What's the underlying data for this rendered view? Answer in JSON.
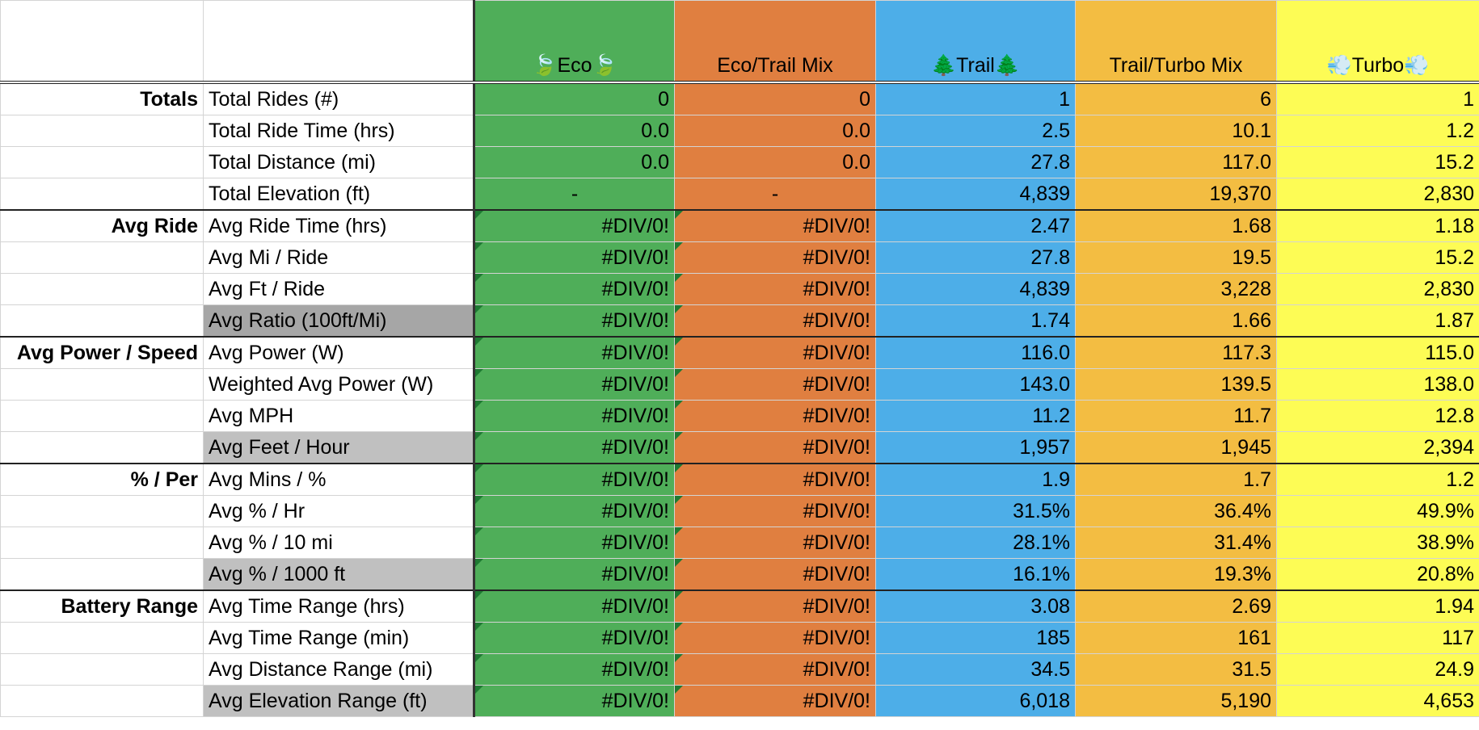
{
  "header": {
    "columns": [
      "🍃Eco🍃",
      "Eco/Trail Mix",
      "🌲Trail🌲",
      "Trail/Turbo Mix",
      "💨Turbo💨"
    ]
  },
  "groups": [
    {
      "label": "Totals",
      "rows": [
        {
          "name": "Total Rides (#)",
          "values": [
            "0",
            "0",
            "1",
            "6",
            "1"
          ]
        },
        {
          "name": "Total Ride Time (hrs)",
          "values": [
            "0.0",
            "0.0",
            "2.5",
            "10.1",
            "1.2"
          ]
        },
        {
          "name": "Total Distance (mi)",
          "values": [
            "0.0",
            "0.0",
            "27.8",
            "117.0",
            "15.2"
          ]
        },
        {
          "name": "Total Elevation (ft)",
          "values": [
            "-",
            "-",
            "4,839",
            "19,370",
            "2,830"
          ]
        }
      ]
    },
    {
      "label": "Avg Ride",
      "rows": [
        {
          "name": "Avg Ride Time (hrs)",
          "values": [
            "#DIV/0!",
            "#DIV/0!",
            "2.47",
            "1.68",
            "1.18"
          ]
        },
        {
          "name": "Avg Mi / Ride",
          "values": [
            "#DIV/0!",
            "#DIV/0!",
            "27.8",
            "19.5",
            "15.2"
          ]
        },
        {
          "name": "Avg Ft / Ride",
          "values": [
            "#DIV/0!",
            "#DIV/0!",
            "4,839",
            "3,228",
            "2,830"
          ]
        },
        {
          "name": "Avg Ratio (100ft/Mi)",
          "values": [
            "#DIV/0!",
            "#DIV/0!",
            "1.74",
            "1.66",
            "1.87"
          ]
        }
      ]
    },
    {
      "label": "Avg Power / Speed",
      "rows": [
        {
          "name": "Avg Power (W)",
          "values": [
            "#DIV/0!",
            "#DIV/0!",
            "116.0",
            "117.3",
            "115.0"
          ]
        },
        {
          "name": "Weighted Avg Power (W)",
          "values": [
            "#DIV/0!",
            "#DIV/0!",
            "143.0",
            "139.5",
            "138.0"
          ]
        },
        {
          "name": "Avg MPH",
          "values": [
            "#DIV/0!",
            "#DIV/0!",
            "11.2",
            "11.7",
            "12.8"
          ]
        },
        {
          "name": "Avg Feet / Hour",
          "values": [
            "#DIV/0!",
            "#DIV/0!",
            "1,957",
            "1,945",
            "2,394"
          ]
        }
      ]
    },
    {
      "label": "% / Per",
      "rows": [
        {
          "name": "Avg Mins / %",
          "values": [
            "#DIV/0!",
            "#DIV/0!",
            "1.9",
            "1.7",
            "1.2"
          ]
        },
        {
          "name": "Avg % / Hr",
          "values": [
            "#DIV/0!",
            "#DIV/0!",
            "31.5%",
            "36.4%",
            "49.9%"
          ]
        },
        {
          "name": "Avg % / 10 mi",
          "values": [
            "#DIV/0!",
            "#DIV/0!",
            "28.1%",
            "31.4%",
            "38.9%"
          ]
        },
        {
          "name": "Avg % / 1000 ft",
          "values": [
            "#DIV/0!",
            "#DIV/0!",
            "16.1%",
            "19.3%",
            "20.8%"
          ]
        }
      ]
    },
    {
      "label": "Battery Range",
      "rows": [
        {
          "name": "Avg Time Range (hrs)",
          "values": [
            "#DIV/0!",
            "#DIV/0!",
            "3.08",
            "2.69",
            "1.94"
          ]
        },
        {
          "name": "Avg Time Range (min)",
          "values": [
            "#DIV/0!",
            "#DIV/0!",
            "185",
            "161",
            "117"
          ]
        },
        {
          "name": "Avg Distance Range (mi)",
          "values": [
            "#DIV/0!",
            "#DIV/0!",
            "34.5",
            "31.5",
            "24.9"
          ]
        },
        {
          "name": "Avg Elevation Range (ft)",
          "values": [
            "#DIV/0!",
            "#DIV/0!",
            "6,018",
            "5,190",
            "4,653"
          ]
        }
      ]
    }
  ]
}
